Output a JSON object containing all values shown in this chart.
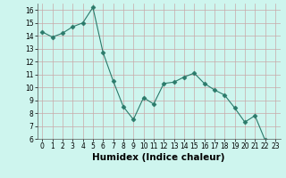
{
  "x": [
    0,
    1,
    2,
    3,
    4,
    5,
    6,
    7,
    8,
    9,
    10,
    11,
    12,
    13,
    14,
    15,
    16,
    17,
    18,
    19,
    20,
    21,
    22,
    23
  ],
  "y": [
    14.3,
    13.9,
    14.2,
    14.7,
    15.0,
    16.2,
    12.7,
    10.5,
    8.5,
    7.5,
    9.2,
    8.7,
    10.3,
    10.4,
    10.8,
    11.1,
    10.3,
    9.8,
    9.4,
    8.4,
    7.3,
    7.8,
    5.9,
    5.7
  ],
  "line_color": "#2a7a6a",
  "marker": "D",
  "marker_size": 2.5,
  "bg_color": "#cef5ee",
  "grid_color_major": "#c8a8a8",
  "grid_color_minor": "#d8c8c8",
  "xlabel": "Humidex (Indice chaleur)",
  "ylim": [
    6,
    16.5
  ],
  "xlim": [
    -0.5,
    23.5
  ],
  "yticks": [
    6,
    7,
    8,
    9,
    10,
    11,
    12,
    13,
    14,
    15,
    16
  ],
  "xticks": [
    0,
    1,
    2,
    3,
    4,
    5,
    6,
    7,
    8,
    9,
    10,
    11,
    12,
    13,
    14,
    15,
    16,
    17,
    18,
    19,
    20,
    21,
    22,
    23
  ],
  "tick_label_fontsize": 5.5,
  "xlabel_fontsize": 7.5,
  "xlabel_fontweight": "bold",
  "linewidth": 0.8
}
